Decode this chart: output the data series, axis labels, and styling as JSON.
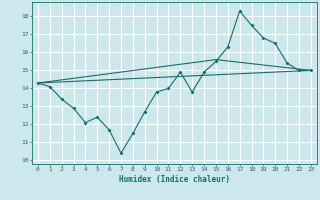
{
  "title": "",
  "xlabel": "Humidex (Indice chaleur)",
  "bg_color": "#cce8ec",
  "line_color": "#1a6b6b",
  "grid_color": "#ffffff",
  "xlim": [
    -0.5,
    23.5
  ],
  "ylim": [
    9.8,
    18.8
  ],
  "yticks": [
    10,
    11,
    12,
    13,
    14,
    15,
    16,
    17,
    18
  ],
  "xticks": [
    0,
    1,
    2,
    3,
    4,
    5,
    6,
    7,
    8,
    9,
    10,
    11,
    12,
    13,
    14,
    15,
    16,
    17,
    18,
    19,
    20,
    21,
    22,
    23
  ],
  "line1_x": [
    0,
    1,
    2,
    3,
    4,
    5,
    6,
    7,
    8,
    9,
    10,
    11,
    12,
    13,
    14,
    15,
    16,
    17,
    18,
    19,
    20,
    21,
    22,
    23
  ],
  "line1_y": [
    14.3,
    14.1,
    13.4,
    12.9,
    12.1,
    12.4,
    11.7,
    10.4,
    11.5,
    12.7,
    13.8,
    14.0,
    14.9,
    13.8,
    14.9,
    15.5,
    16.3,
    18.3,
    17.5,
    16.8,
    16.5,
    15.4,
    15.0,
    15.0
  ],
  "line2_x": [
    0,
    23
  ],
  "line2_y": [
    14.3,
    15.0
  ],
  "line3_x": [
    0,
    15,
    23
  ],
  "line3_y": [
    14.3,
    15.6,
    15.0
  ]
}
